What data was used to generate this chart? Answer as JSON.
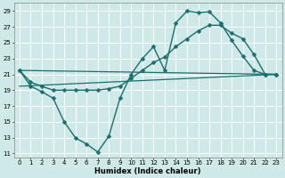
{
  "xlabel": "Humidex (Indice chaleur)",
  "xlim": [
    -0.5,
    23.5
  ],
  "ylim": [
    10.5,
    30
  ],
  "xticks": [
    0,
    1,
    2,
    3,
    4,
    5,
    6,
    7,
    8,
    9,
    10,
    11,
    12,
    13,
    14,
    15,
    16,
    17,
    18,
    19,
    20,
    21,
    22,
    23
  ],
  "yticks": [
    11,
    13,
    15,
    17,
    19,
    21,
    23,
    25,
    27,
    29
  ],
  "bg_color": "#cfe8e8",
  "line_color": "#1a6e6e",
  "lines": [
    {
      "x": [
        0,
        1,
        2,
        3,
        4,
        5,
        6,
        7,
        8,
        9,
        10,
        11,
        12,
        13,
        14,
        15,
        16,
        17,
        18,
        19,
        20,
        21,
        22,
        23
      ],
      "y": [
        21.5,
        19.5,
        18.8,
        18.0,
        15.0,
        13.0,
        12.2,
        11.2,
        13.2,
        18.0,
        21.0,
        23.0,
        24.5,
        21.5,
        27.5,
        29.0,
        28.8,
        28.9,
        27.5,
        25.3,
        23.3,
        21.5,
        21.0,
        21.0
      ],
      "marker": "D",
      "markersize": 2.5,
      "linewidth": 1.0,
      "has_marker": true
    },
    {
      "x": [
        0,
        1,
        2,
        3,
        4,
        5,
        6,
        7,
        8,
        9,
        10,
        11,
        12,
        13,
        14,
        15,
        16,
        17,
        18,
        19,
        20,
        21,
        22,
        23
      ],
      "y": [
        21.5,
        20.0,
        19.5,
        19.0,
        19.0,
        19.0,
        19.0,
        19.0,
        19.2,
        19.5,
        20.5,
        21.5,
        22.5,
        23.2,
        24.5,
        25.5,
        26.5,
        27.2,
        27.2,
        26.2,
        25.5,
        23.5,
        21.0,
        21.0
      ],
      "marker": "D",
      "markersize": 2.5,
      "linewidth": 1.0,
      "has_marker": true
    },
    {
      "x": [
        0,
        23
      ],
      "y": [
        21.5,
        21.0
      ],
      "marker": null,
      "markersize": 0,
      "linewidth": 0.9,
      "has_marker": false
    },
    {
      "x": [
        0,
        23
      ],
      "y": [
        19.5,
        21.0
      ],
      "marker": null,
      "markersize": 0,
      "linewidth": 0.9,
      "has_marker": false
    }
  ],
  "grid_color": "#ffffff",
  "tick_fontsize": 5.0,
  "xlabel_fontsize": 6.0
}
